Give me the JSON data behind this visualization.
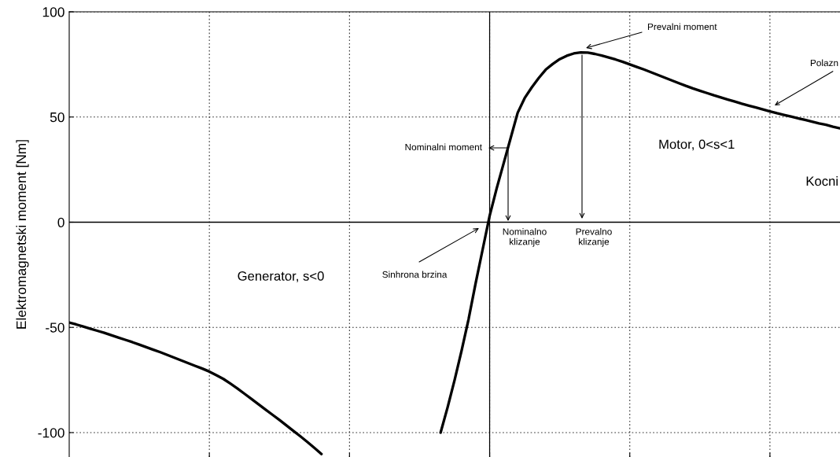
{
  "chart_data": {
    "type": "line",
    "ylabel": "Elektromagnetski moment [Nm]",
    "categories": [
      null,
      null,
      null,
      null,
      null,
      null,
      null,
      null,
      null,
      null,
      null,
      null,
      null,
      null,
      null,
      null,
      null,
      null,
      null,
      null,
      null,
      null,
      null,
      null,
      null,
      null,
      null,
      null,
      null,
      null,
      null,
      null,
      null,
      null,
      null,
      null,
      null,
      null,
      null,
      null,
      null,
      null,
      null,
      null,
      null,
      null,
      null,
      null,
      null,
      null,
      null,
      null,
      null,
      null,
      null,
      null,
      null,
      null,
      null,
      null,
      null,
      null,
      null,
      null,
      null,
      null,
      null,
      null,
      null,
      null,
      null,
      null,
      null,
      null,
      null,
      null,
      null,
      null,
      null,
      null,
      null,
      null,
      null,
      null,
      null,
      null,
      null,
      null,
      null,
      null,
      null,
      null,
      null,
      null,
      null,
      null,
      null,
      null,
      null,
      null,
      null,
      null,
      null,
      null,
      null,
      null,
      null,
      null,
      null,
      null,
      null
    ],
    "series": [
      {
        "color": "#000000",
        "values": [
          -47.7,
          -48.6,
          -49.6,
          -50.6,
          -51.6,
          -52.6,
          -53.7,
          -54.8,
          -55.9,
          -57.0,
          -58.2,
          -59.4,
          -60.6,
          -61.8,
          -63.1,
          -64.4,
          -65.7,
          -67.0,
          -68.3,
          -69.6,
          -71.0,
          -72.7,
          -74.5,
          -76.7,
          -79.0,
          -81.5,
          -84.0,
          -86.5,
          -89.0,
          -91.5,
          -94.0,
          -96.6,
          -99.2,
          -101.8,
          -104.5,
          -107.3,
          -110.2,
          null,
          null,
          null,
          null,
          null,
          null,
          null,
          null,
          null,
          null,
          null,
          null,
          null,
          null,
          null,
          null,
          null,
          null,
          null,
          null,
          null,
          null,
          null,
          null,
          null,
          null,
          null,
          null,
          null,
          null,
          null,
          null,
          null,
          null,
          null,
          null,
          null,
          null,
          null,
          null,
          null,
          null,
          null,
          null,
          null,
          null,
          null,
          null,
          null,
          null,
          null,
          null,
          null,
          null,
          null,
          null,
          null,
          null,
          null,
          null,
          null,
          null,
          null,
          null,
          null,
          null,
          null,
          null,
          null,
          null,
          null,
          null,
          null,
          null
        ]
      },
      {
        "color": "#000000",
        "values": [
          null,
          null,
          null,
          null,
          null,
          null,
          null,
          null,
          null,
          null,
          null,
          null,
          null,
          null,
          null,
          null,
          null,
          null,
          null,
          null,
          null,
          null,
          null,
          null,
          null,
          null,
          null,
          null,
          null,
          null,
          null,
          null,
          null,
          null,
          null,
          null,
          null,
          null,
          null,
          null,
          null,
          null,
          null,
          null,
          null,
          null,
          null,
          null,
          null,
          null,
          null,
          null,
          null,
          -100,
          -88,
          -75,
          -61,
          -46,
          -29,
          -13,
          3,
          16,
          28,
          40,
          52,
          59,
          64,
          68.5,
          72.5,
          75.2,
          77.5,
          79.1,
          80.2,
          80.7,
          80.6,
          80.0,
          79.2,
          78.3,
          77.3,
          76.2,
          75.0,
          73.8,
          72.6,
          71.3,
          70.0,
          68.7,
          67.4,
          66.1,
          64.8,
          63.6,
          62.5,
          61.4,
          60.3,
          59.3,
          58.3,
          57.3,
          56.3,
          55.4,
          54.5,
          53.6,
          52.7,
          51.8,
          51.0,
          50.2,
          49.4,
          48.6,
          47.8,
          47.0,
          46.3,
          45.4,
          44.6
        ]
      }
    ],
    "ylim": [
      -111.6,
      100
    ],
    "yticks": [
      -100,
      -50,
      0,
      50,
      100
    ],
    "grid": true,
    "line_style": "solid",
    "marker": "none",
    "ref_lines": [
      {
        "axis": "y",
        "value": 0,
        "color": "#000000"
      }
    ],
    "annotations": [
      "Nominalni moment",
      "Nominalno\nklizanje",
      "Prevalno\nklizanje",
      "Prevalni moment",
      "Sinhrona brzina",
      "Polazn",
      "Generator, s<0",
      "Motor, 0<s<1",
      "Kocni"
    ]
  }
}
